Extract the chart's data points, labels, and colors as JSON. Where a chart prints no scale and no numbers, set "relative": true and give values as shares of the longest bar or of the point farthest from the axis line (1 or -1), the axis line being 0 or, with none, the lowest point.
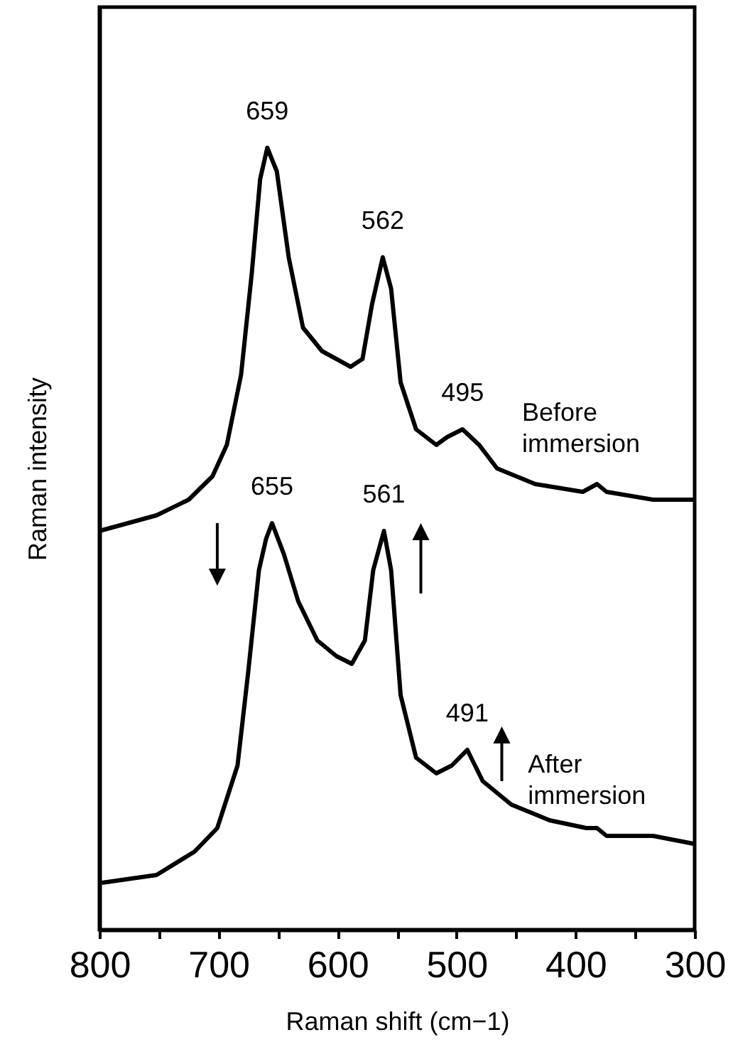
{
  "chart_data": {
    "type": "line",
    "relative": true,
    "xlabel": "Raman shift (cm−1)",
    "ylabel": "Raman intensity",
    "xlim": [
      800,
      300
    ],
    "xticks": [
      800,
      {
        "value": 750,
        "label": null
      },
      700,
      {
        "value": 650,
        "label": null
      },
      600,
      {
        "value": 550,
        "label": null
      },
      500,
      {
        "value": 450,
        "label": null
      },
      400,
      {
        "value": 350,
        "label": null
      },
      300
    ],
    "series": [
      {
        "name": "Before immersion",
        "color": "#000000",
        "x": [
          800,
          752,
          725,
          705,
          693,
          681,
          672,
          665,
          659,
          651,
          641,
          629,
          613,
          589,
          579,
          571,
          562,
          555,
          547,
          534,
          517,
          508,
          495,
          481,
          466,
          434,
          394,
          382,
          374,
          335,
          301
        ],
        "values": [
          0.51,
          0.53,
          0.55,
          0.58,
          0.62,
          0.71,
          0.84,
          0.96,
          1.0,
          0.97,
          0.86,
          0.77,
          0.74,
          0.72,
          0.73,
          0.8,
          0.86,
          0.82,
          0.7,
          0.64,
          0.62,
          0.63,
          0.64,
          0.62,
          0.59,
          0.57,
          0.56,
          0.57,
          0.56,
          0.55,
          0.55
        ]
      },
      {
        "name": "After immersion",
        "color": "#000000",
        "x": [
          798,
          752,
          720,
          701,
          684,
          675,
          666,
          660,
          655,
          645,
          633,
          617,
          601,
          588,
          577,
          570,
          561,
          555,
          547,
          534,
          517,
          504,
          491,
          478,
          454,
          422,
          391,
          382,
          374,
          335,
          301
        ],
        "values": [
          0.06,
          0.07,
          0.1,
          0.13,
          0.21,
          0.33,
          0.46,
          0.5,
          0.52,
          0.48,
          0.42,
          0.37,
          0.35,
          0.34,
          0.37,
          0.46,
          0.51,
          0.46,
          0.3,
          0.22,
          0.2,
          0.21,
          0.23,
          0.19,
          0.16,
          0.14,
          0.13,
          0.13,
          0.12,
          0.12,
          0.11
        ]
      }
    ],
    "annotations": [
      {
        "text": "659",
        "x": 659,
        "y": 1.0
      },
      {
        "text": "562",
        "x": 562,
        "y": 0.86
      },
      {
        "text": "495",
        "x": 495,
        "y": 0.64
      },
      {
        "text": "655",
        "x": 655,
        "y": 0.52
      },
      {
        "text": "561",
        "x": 561,
        "y": 0.51
      },
      {
        "text": "491",
        "x": 491,
        "y": 0.23
      }
    ],
    "line_style": "solid",
    "grid": false
  }
}
